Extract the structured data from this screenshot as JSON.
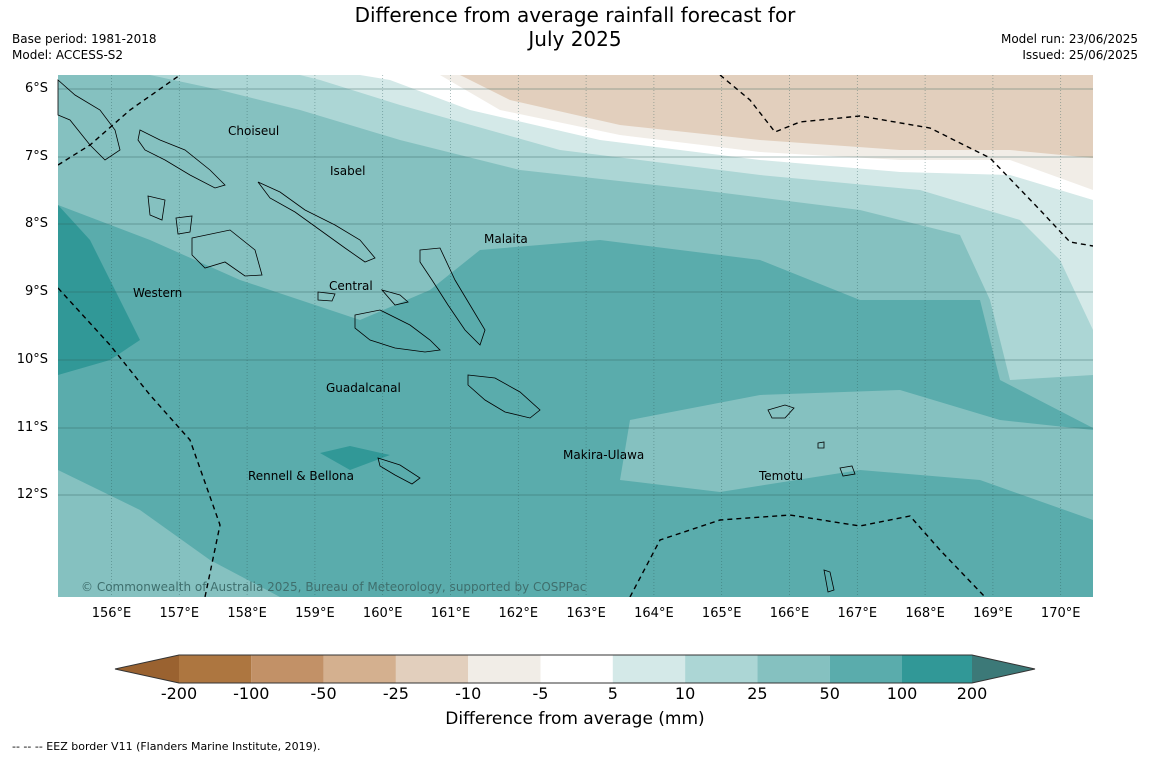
{
  "title_line1": "Difference from average rainfall forecast for",
  "title_line2": "July 2025",
  "meta_left": {
    "base_period": "Base period: 1981-2018",
    "model": "Model: ACCESS-S2"
  },
  "meta_right": {
    "model_run": "Model run: 23/06/2025",
    "issued": "Issued: 25/06/2025"
  },
  "latitude_labels": [
    "6°S",
    "7°S",
    "8°S",
    "9°S",
    "10°S",
    "11°S",
    "12°S"
  ],
  "longitude_labels": [
    "156°E",
    "157°E",
    "158°E",
    "159°E",
    "160°E",
    "161°E",
    "162°E",
    "163°E",
    "164°E",
    "165°E",
    "166°E",
    "167°E",
    "168°E",
    "169°E",
    "170°E"
  ],
  "places": [
    "Choiseul",
    "Isabel",
    "Malaita",
    "Western",
    "Central",
    "Guadalcanal",
    "Makira-Ulawa",
    "Rennell & Bellona",
    "Temotu"
  ],
  "copyright": "© Commonwealth of Australia 2025, Bureau of Meteorology, supported by COSPPac",
  "colorbar": {
    "ticks": [
      "-200",
      "-100",
      "-50",
      "-25",
      "-10",
      "-5",
      "5",
      "10",
      "25",
      "50",
      "100",
      "200"
    ],
    "colors": [
      "#ad7640",
      "#c29167",
      "#d4b08f",
      "#e2cfbd",
      "#f1ede7",
      "#ffffff",
      "#d4e9e8",
      "#acd6d5",
      "#85c1c0",
      "#5aacac",
      "#319897"
    ],
    "under_color": "#9a6230",
    "over_color": "#3c7978",
    "title": "Difference from average (mm)"
  },
  "footnote": "--  --  -- EEZ border V11 (Flanders Marine Institute, 2019)."
}
